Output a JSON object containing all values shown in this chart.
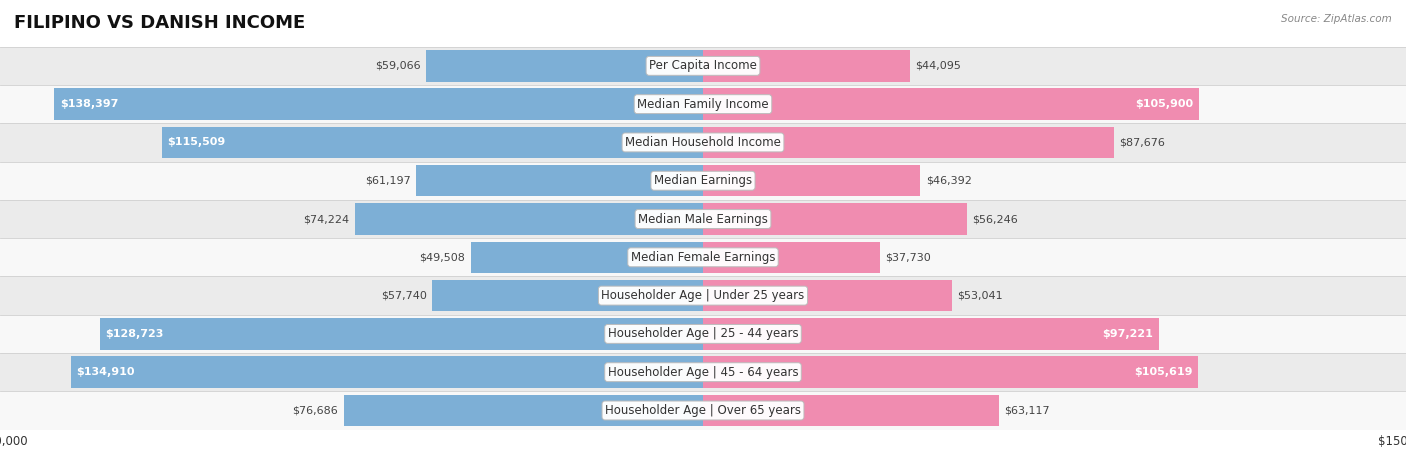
{
  "title": "FILIPINO VS DANISH INCOME",
  "source": "Source: ZipAtlas.com",
  "categories": [
    "Per Capita Income",
    "Median Family Income",
    "Median Household Income",
    "Median Earnings",
    "Median Male Earnings",
    "Median Female Earnings",
    "Householder Age | Under 25 years",
    "Householder Age | 25 - 44 years",
    "Householder Age | 45 - 64 years",
    "Householder Age | Over 65 years"
  ],
  "filipino_values": [
    59066,
    138397,
    115509,
    61197,
    74224,
    49508,
    57740,
    128723,
    134910,
    76686
  ],
  "danish_values": [
    44095,
    105900,
    87676,
    46392,
    56246,
    37730,
    53041,
    97221,
    105619,
    63117
  ],
  "filipino_color": "#7dafd6",
  "danish_color": "#f08cb0",
  "row_bg_color_light": "#ebebeb",
  "row_bg_color_white": "#f8f8f8",
  "row_border_color": "#d0d0d0",
  "max_value": 150000,
  "xlim": 150000,
  "title_fontsize": 13,
  "label_fontsize": 8.5,
  "value_fontsize": 8,
  "legend_fontsize": 9,
  "inside_label_threshold": 90000
}
